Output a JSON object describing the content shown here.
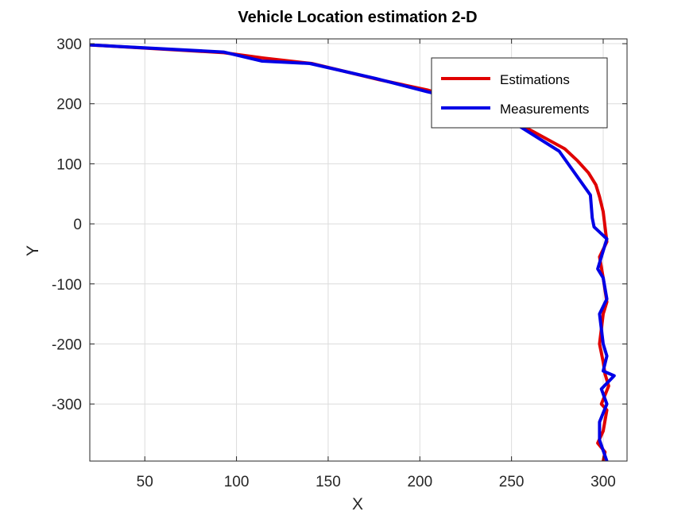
{
  "chart_data": {
    "type": "line",
    "title": "Vehicle Location estimation 2-D",
    "xlabel": "X",
    "ylabel": "Y",
    "xlim": [
      20,
      313
    ],
    "ylim": [
      -395,
      308
    ],
    "xticks": [
      50,
      100,
      150,
      200,
      250,
      300
    ],
    "yticks": [
      300,
      200,
      100,
      0,
      -100,
      -200,
      -300
    ],
    "grid": true,
    "legend_position": "top-right",
    "series": [
      {
        "name": "Estimations",
        "color": "#e00000",
        "x": [
          20,
          93,
          115,
          141,
          178,
          204,
          220,
          237,
          261,
          279,
          286,
          292,
          296,
          298,
          300,
          302,
          298,
          300,
          302,
          300,
          298,
          300,
          301,
          303,
          299,
          302,
          300,
          297,
          301,
          300
        ],
        "y": [
          298,
          285,
          276,
          267,
          240,
          223,
          208,
          192,
          155,
          125,
          105,
          85,
          65,
          45,
          20,
          -30,
          -55,
          -90,
          -130,
          -150,
          -200,
          -230,
          -250,
          -270,
          -300,
          -310,
          -345,
          -365,
          -380,
          -395
        ]
      },
      {
        "name": "Measurements",
        "color": "#0000e6",
        "x": [
          20,
          93,
          114,
          140,
          176,
          204,
          227,
          253,
          276,
          293,
          294,
          295,
          302,
          297,
          300,
          302,
          298,
          300,
          302,
          300,
          306,
          299,
          302,
          298,
          298,
          302
        ],
        "y": [
          298,
          286,
          271,
          267,
          242,
          220,
          204,
          165,
          121,
          48,
          10,
          -5,
          -25,
          -75,
          -90,
          -125,
          -150,
          -200,
          -220,
          -245,
          -253,
          -275,
          -300,
          -330,
          -360,
          -395
        ]
      }
    ]
  }
}
